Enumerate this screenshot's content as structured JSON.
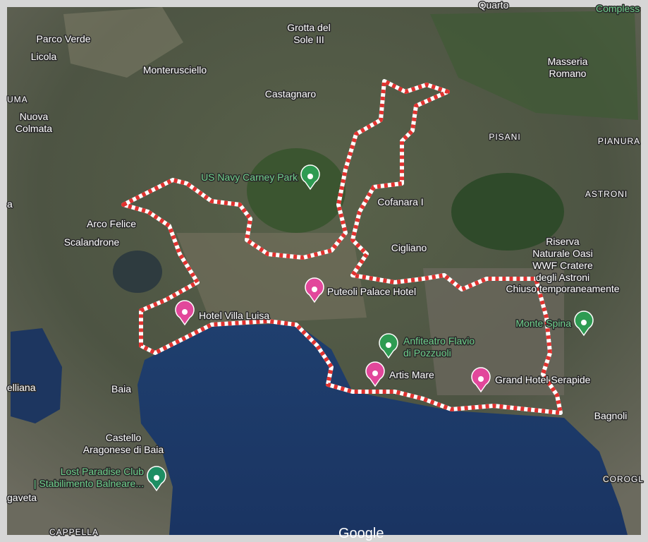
{
  "map": {
    "places": [
      {
        "lines": [
          "Quarto"
        ]
      },
      {
        "lines": [
          "Parco Verde"
        ]
      },
      {
        "lines": [
          "Licola"
        ]
      },
      {
        "lines": [
          "Grotta del",
          "Sole III"
        ]
      },
      {
        "lines": [
          "Monterusciello"
        ]
      },
      {
        "lines": [
          "Masseria",
          "Romano"
        ]
      },
      {
        "lines": [
          "Castagnaro"
        ]
      },
      {
        "lines": [
          "UMA"
        ]
      },
      {
        "lines": [
          "Nuova",
          "Colmata"
        ]
      },
      {
        "lines": [
          "PISANI"
        ]
      },
      {
        "lines": [
          "PIANURA"
        ]
      },
      {
        "lines": [
          "ASTRONI"
        ]
      },
      {
        "lines": [
          "Cofanara I"
        ]
      },
      {
        "lines": [
          "Arco Felice"
        ]
      },
      {
        "lines": [
          "Scalandrone"
        ]
      },
      {
        "lines": [
          "Cigliano"
        ]
      },
      {
        "lines": [
          "Riserva",
          "Naturale Oasi",
          "WWF Cratere",
          "degli Astroni"
        ]
      },
      {
        "lines": [
          "Chiuso temporaneamente"
        ]
      },
      {
        "lines": [
          "Baia"
        ]
      },
      {
        "lines": [
          "Bagnoli"
        ]
      },
      {
        "lines": [
          "Castello",
          "Aragonese di Baia"
        ]
      },
      {
        "lines": [
          "gaveta"
        ]
      },
      {
        "lines": [
          "elliana"
        ]
      },
      {
        "lines": [
          "COROGL"
        ]
      },
      {
        "lines": [
          "CAPPELLA"
        ]
      },
      {
        "lines": [
          "a"
        ]
      }
    ],
    "pois": [
      {
        "lines": [
          "US Navy Carney Park"
        ],
        "kind": "park"
      },
      {
        "lines": [
          "Puteoli Palace Hotel"
        ],
        "kind": "hotel"
      },
      {
        "lines": [
          "Hotel Villa Luisa"
        ],
        "kind": "hotel"
      },
      {
        "lines": [
          "Anfiteatro Flavio",
          "di Pozzuoli"
        ],
        "kind": "park"
      },
      {
        "lines": [
          "Artis Mare"
        ],
        "kind": "hotel"
      },
      {
        "lines": [
          "Grand Hotel Serapide"
        ],
        "kind": "hotel"
      },
      {
        "lines": [
          "Monte Spina"
        ],
        "kind": "park"
      },
      {
        "lines": [
          "Lost Paradise Club",
          "| Stabilimento Balneare..."
        ],
        "kind": "place"
      },
      {
        "lines": [
          "Compless"
        ],
        "kind": "label"
      }
    ],
    "watermark": "Google"
  }
}
